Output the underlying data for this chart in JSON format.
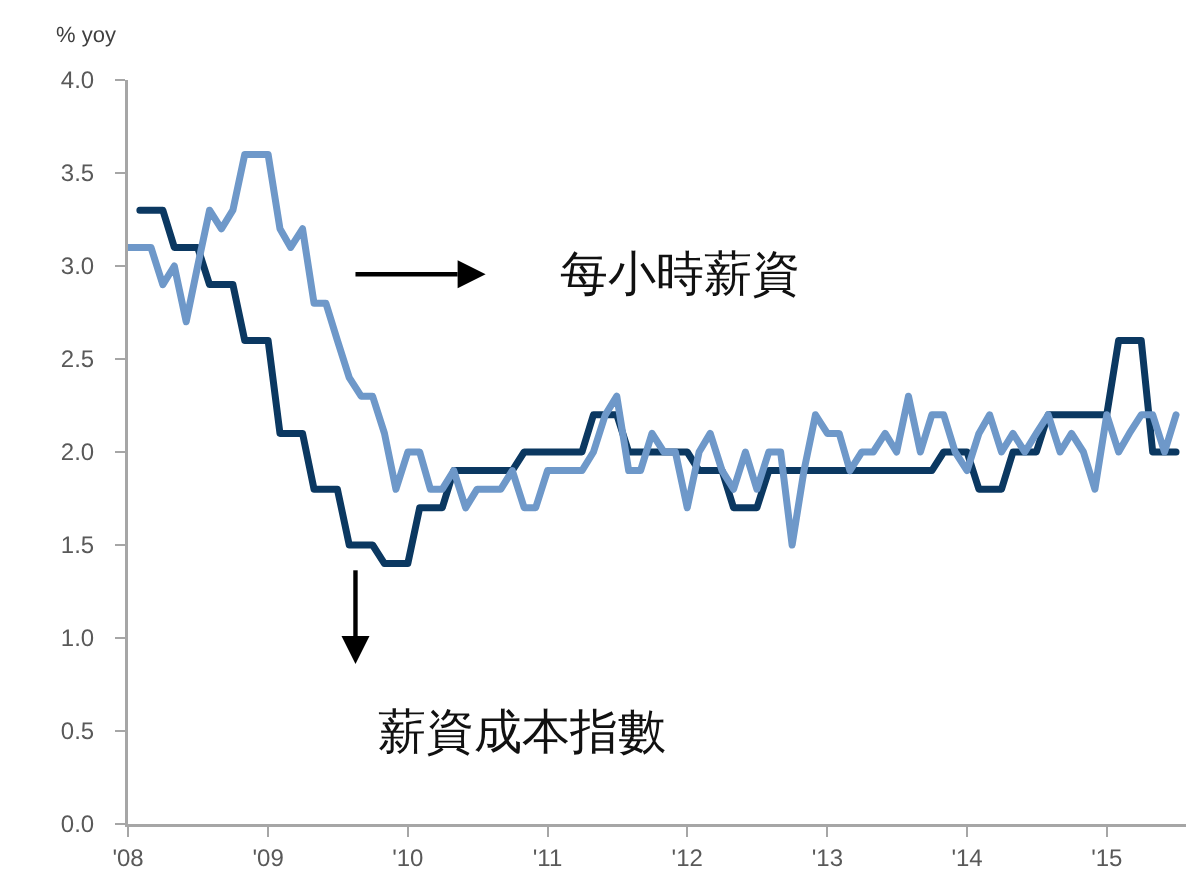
{
  "chart_data": {
    "type": "line",
    "ylabel": "% yoy",
    "x": [
      "2008-01",
      "2008-02",
      "2008-03",
      "2008-04",
      "2008-05",
      "2008-06",
      "2008-07",
      "2008-08",
      "2008-09",
      "2008-10",
      "2008-11",
      "2008-12",
      "2009-01",
      "2009-02",
      "2009-03",
      "2009-04",
      "2009-05",
      "2009-06",
      "2009-07",
      "2009-08",
      "2009-09",
      "2009-10",
      "2009-11",
      "2009-12",
      "2010-01",
      "2010-02",
      "2010-03",
      "2010-04",
      "2010-05",
      "2010-06",
      "2010-07",
      "2010-08",
      "2010-09",
      "2010-10",
      "2010-11",
      "2010-12",
      "2011-01",
      "2011-02",
      "2011-03",
      "2011-04",
      "2011-05",
      "2011-06",
      "2011-07",
      "2011-08",
      "2011-09",
      "2011-10",
      "2011-11",
      "2011-12",
      "2012-01",
      "2012-02",
      "2012-03",
      "2012-04",
      "2012-05",
      "2012-06",
      "2012-07",
      "2012-08",
      "2012-09",
      "2012-10",
      "2012-11",
      "2012-12",
      "2013-01",
      "2013-02",
      "2013-03",
      "2013-04",
      "2013-05",
      "2013-06",
      "2013-07",
      "2013-08",
      "2013-09",
      "2013-10",
      "2013-11",
      "2013-12",
      "2014-01",
      "2014-02",
      "2014-03",
      "2014-04",
      "2014-05",
      "2014-06",
      "2014-07",
      "2014-08",
      "2014-09",
      "2014-10",
      "2014-11",
      "2014-12",
      "2015-01",
      "2015-02",
      "2015-03",
      "2015-04",
      "2015-05",
      "2015-06",
      "2015-07"
    ],
    "series": [
      {
        "name": "薪資成本指數",
        "color": "#0b3861",
        "values": [
          null,
          3.3,
          3.3,
          3.3,
          3.1,
          3.1,
          3.1,
          2.9,
          2.9,
          2.9,
          2.6,
          2.6,
          2.6,
          2.1,
          2.1,
          2.1,
          1.8,
          1.8,
          1.8,
          1.5,
          1.5,
          1.5,
          1.4,
          1.4,
          1.4,
          1.7,
          1.7,
          1.7,
          1.9,
          1.9,
          1.9,
          1.9,
          1.9,
          1.9,
          2.0,
          2.0,
          2.0,
          2.0,
          2.0,
          2.0,
          2.2,
          2.2,
          2.2,
          2.0,
          2.0,
          2.0,
          2.0,
          2.0,
          2.0,
          1.9,
          1.9,
          1.9,
          1.7,
          1.7,
          1.7,
          1.9,
          1.9,
          1.9,
          1.9,
          1.9,
          1.9,
          1.9,
          1.9,
          1.9,
          1.9,
          1.9,
          1.9,
          1.9,
          1.9,
          1.9,
          2.0,
          2.0,
          2.0,
          1.8,
          1.8,
          1.8,
          2.0,
          2.0,
          2.0,
          2.2,
          2.2,
          2.2,
          2.2,
          2.2,
          2.2,
          2.6,
          2.6,
          2.6,
          2.0,
          2.0,
          2.0
        ]
      },
      {
        "name": "每小時薪資",
        "color": "#6e98c9",
        "values": [
          3.1,
          3.1,
          3.1,
          2.9,
          3.0,
          2.7,
          3.0,
          3.3,
          3.2,
          3.3,
          3.6,
          3.6,
          3.6,
          3.2,
          3.1,
          3.2,
          2.8,
          2.8,
          2.6,
          2.4,
          2.3,
          2.3,
          2.1,
          1.8,
          2.0,
          2.0,
          1.8,
          1.8,
          1.9,
          1.7,
          1.8,
          1.8,
          1.8,
          1.9,
          1.7,
          1.7,
          1.9,
          1.9,
          1.9,
          1.9,
          2.0,
          2.2,
          2.3,
          1.9,
          1.9,
          2.1,
          2.0,
          2.0,
          1.7,
          2.0,
          2.1,
          1.9,
          1.8,
          2.0,
          1.8,
          2.0,
          2.0,
          1.5,
          1.9,
          2.2,
          2.1,
          2.1,
          1.9,
          2.0,
          2.0,
          2.1,
          2.0,
          2.3,
          2.0,
          2.2,
          2.2,
          2.0,
          1.9,
          2.1,
          2.2,
          2.0,
          2.1,
          2.0,
          2.1,
          2.2,
          2.0,
          2.1,
          2.0,
          1.8,
          2.2,
          2.0,
          2.1,
          2.2,
          2.2,
          2.0,
          2.2
        ]
      }
    ],
    "xlim": [
      "2008-01-01",
      "2015-07-27"
    ],
    "xticks": [
      {
        "value": "2008-01-01",
        "label": "'08"
      },
      {
        "value": "2009-01-01",
        "label": "'09"
      },
      {
        "value": "2010-01-01",
        "label": "'10"
      },
      {
        "value": "2011-01-01",
        "label": "'11"
      },
      {
        "value": "2012-01-01",
        "label": "'12"
      },
      {
        "value": "2013-01-01",
        "label": "'13"
      },
      {
        "value": "2014-01-01",
        "label": "'14"
      },
      {
        "value": "2015-01-01",
        "label": "'15"
      }
    ],
    "ylim": [
      0,
      4
    ],
    "yticks": [
      {
        "value": 0,
        "label": "0.0"
      },
      {
        "value": 0.5,
        "label": "0.5"
      },
      {
        "value": 1,
        "label": "1.0"
      },
      {
        "value": 1.5,
        "label": "1.5"
      },
      {
        "value": 2,
        "label": "2.0"
      },
      {
        "value": 2.5,
        "label": "2.5"
      },
      {
        "value": 3,
        "label": "3.0"
      },
      {
        "value": 3.5,
        "label": "3.5"
      },
      {
        "value": 4,
        "label": "4.0"
      }
    ],
    "grid": false,
    "legend": false
  }
}
